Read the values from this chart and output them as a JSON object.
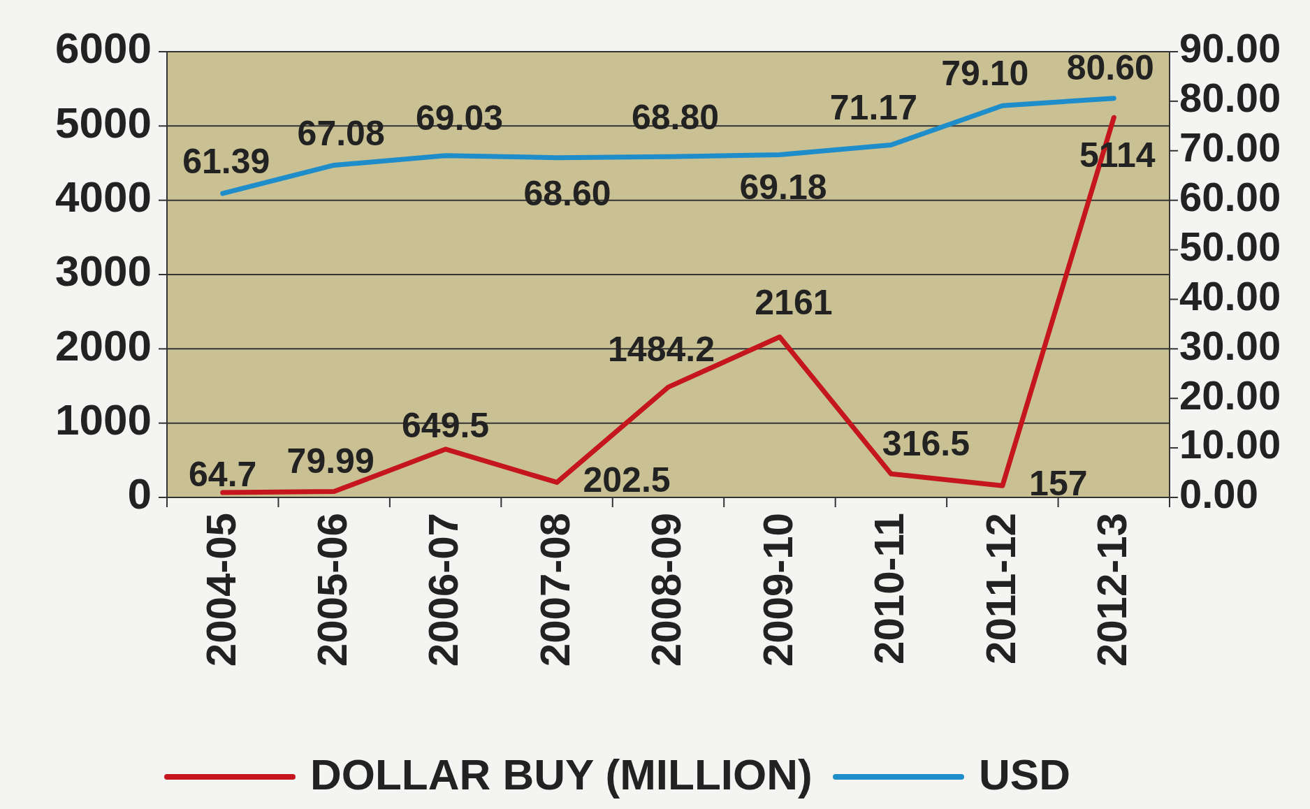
{
  "chart_data": {
    "type": "line",
    "categories": [
      "2004-05",
      "2005-06",
      "2006-07",
      "2007-08",
      "2008-09",
      "2009-10",
      "2010-11",
      "2011-12",
      "2012-13"
    ],
    "series": [
      {
        "name": "DOLLAR BUY (MILLION)",
        "color": "#c4161c",
        "values": [
          64.7,
          79.99,
          649.5,
          202.5,
          1484.2,
          2161,
          316.5,
          157,
          5114
        ]
      },
      {
        "name": "USD",
        "color": "#1f8dc9",
        "axis": "y2",
        "values": [
          61.39,
          67.08,
          69.03,
          68.6,
          68.8,
          69.18,
          71.17,
          79.1,
          80.6
        ],
        "value_labels": [
          "61.39",
          "67.08",
          "69.03",
          "68.60",
          "68.80",
          "69.18",
          "71.17",
          "79.10",
          "80.60"
        ]
      }
    ],
    "ylim": [
      0,
      6000
    ],
    "yticks": [
      0,
      1000,
      2000,
      3000,
      4000,
      5000,
      6000
    ],
    "y2lim": [
      0,
      90
    ],
    "y2ticks": [
      {
        "value": 0,
        "label": "0.00"
      },
      {
        "value": 10,
        "label": "10.00"
      },
      {
        "value": 20,
        "label": "20.00"
      },
      {
        "value": 30,
        "label": "30.00"
      },
      {
        "value": 40,
        "label": "40.00"
      },
      {
        "value": 50,
        "label": "50.00"
      },
      {
        "value": 60,
        "label": "60.00"
      },
      {
        "value": 70,
        "label": "70.00"
      },
      {
        "value": 80,
        "label": "80.00"
      },
      {
        "value": 90,
        "label": "90.00"
      }
    ],
    "grid": "y",
    "legend": "bottom",
    "data_labels": true,
    "marker": "none",
    "line_style": "solid"
  }
}
